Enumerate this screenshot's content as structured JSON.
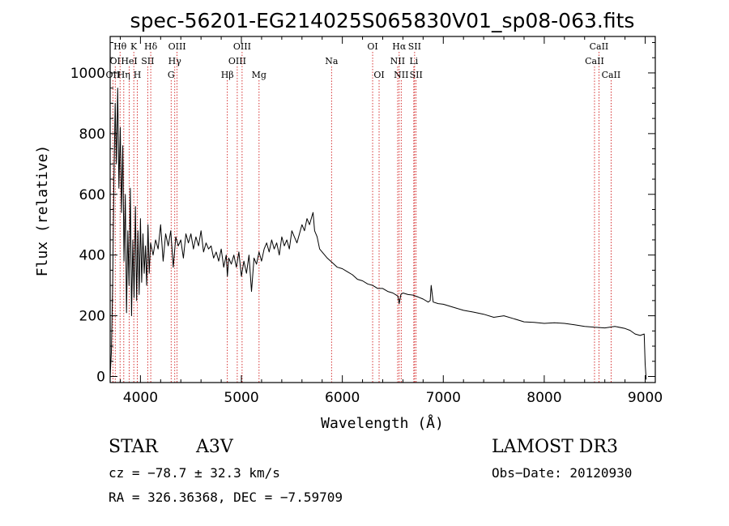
{
  "chart_data": {
    "type": "line",
    "title": "spec-56201-EG214025S065830V01_sp08-063.fits",
    "xlabel": "Wavelength (Å)",
    "ylabel": "Flux (relative)",
    "xlim": [
      3700,
      9100
    ],
    "ylim": [
      -20,
      1120
    ],
    "xticks": [
      4000,
      5000,
      6000,
      7000,
      8000,
      9000
    ],
    "yticks": [
      0,
      200,
      400,
      600,
      800,
      1000
    ],
    "series": [
      {
        "name": "flux",
        "x": [
          3700,
          3712,
          3725,
          3737,
          3750,
          3762,
          3775,
          3787,
          3800,
          3812,
          3825,
          3837,
          3850,
          3862,
          3875,
          3887,
          3900,
          3912,
          3925,
          3937,
          3950,
          3962,
          3975,
          3987,
          4000,
          4012,
          4025,
          4037,
          4050,
          4062,
          4075,
          4087,
          4100,
          4125,
          4150,
          4175,
          4200,
          4225,
          4250,
          4275,
          4300,
          4325,
          4350,
          4375,
          4400,
          4425,
          4450,
          4475,
          4500,
          4525,
          4550,
          4575,
          4600,
          4625,
          4650,
          4675,
          4700,
          4725,
          4750,
          4775,
          4800,
          4825,
          4850,
          4861,
          4875,
          4900,
          4925,
          4950,
          4975,
          5000,
          5025,
          5050,
          5075,
          5100,
          5125,
          5150,
          5175,
          5200,
          5225,
          5250,
          5275,
          5300,
          5325,
          5350,
          5375,
          5400,
          5425,
          5450,
          5475,
          5500,
          5525,
          5550,
          5575,
          5600,
          5625,
          5650,
          5675,
          5700,
          5710,
          5725,
          5750,
          5775,
          5800,
          5850,
          5900,
          5950,
          6000,
          6050,
          6100,
          6150,
          6200,
          6250,
          6300,
          6350,
          6400,
          6450,
          6500,
          6550,
          6563,
          6580,
          6600,
          6650,
          6700,
          6750,
          6800,
          6850,
          6870,
          6880,
          6900,
          6950,
          7000,
          7100,
          7200,
          7300,
          7400,
          7500,
          7600,
          7700,
          7800,
          7900,
          8000,
          8100,
          8200,
          8300,
          8400,
          8500,
          8600,
          8700,
          8800,
          8850,
          8900,
          8950,
          8990,
          9000,
          9010
        ],
        "values": [
          0,
          80,
          300,
          640,
          900,
          700,
          950,
          620,
          820,
          540,
          760,
          380,
          600,
          210,
          480,
          300,
          620,
          200,
          450,
          260,
          560,
          250,
          480,
          270,
          520,
          310,
          470,
          340,
          430,
          300,
          500,
          340,
          440,
          400,
          450,
          420,
          500,
          380,
          470,
          430,
          480,
          360,
          460,
          430,
          450,
          390,
          470,
          440,
          470,
          420,
          460,
          430,
          480,
          410,
          440,
          420,
          430,
          390,
          410,
          380,
          420,
          360,
          400,
          330,
          390,
          370,
          400,
          360,
          410,
          330,
          380,
          340,
          400,
          280,
          390,
          370,
          410,
          380,
          420,
          440,
          410,
          450,
          420,
          440,
          400,
          460,
          430,
          450,
          420,
          480,
          460,
          440,
          470,
          500,
          480,
          520,
          500,
          530,
          540,
          480,
          460,
          420,
          410,
          390,
          375,
          360,
          355,
          345,
          335,
          320,
          315,
          305,
          300,
          290,
          290,
          280,
          275,
          265,
          240,
          270,
          275,
          270,
          268,
          262,
          255,
          245,
          250,
          300,
          245,
          240,
          238,
          228,
          218,
          212,
          205,
          195,
          200,
          190,
          180,
          178,
          175,
          177,
          175,
          170,
          165,
          162,
          160,
          165,
          158,
          152,
          140,
          135,
          140,
          40,
          -10
        ]
      }
    ],
    "lines": [
      {
        "wavelength": 3727,
        "label": "OII",
        "row": 2
      },
      {
        "wavelength": 3750,
        "label": "OI",
        "row": 1
      },
      {
        "wavelength": 3798,
        "label": "Hθ",
        "row": 0
      },
      {
        "wavelength": 3835,
        "label": "Hη",
        "row": 2
      },
      {
        "wavelength": 3889,
        "label": "HeI",
        "row": 1
      },
      {
        "wavelength": 3934,
        "label": "K",
        "row": 0
      },
      {
        "wavelength": 3969,
        "label": "H",
        "row": 2
      },
      {
        "wavelength": 4072,
        "label": "SII",
        "row": 1
      },
      {
        "wavelength": 4102,
        "label": "Hδ",
        "row": 0
      },
      {
        "wavelength": 4304,
        "label": "G",
        "row": 2
      },
      {
        "wavelength": 4340,
        "label": "Hγ",
        "row": 1
      },
      {
        "wavelength": 4363,
        "label": "OIII",
        "row": 0
      },
      {
        "wavelength": 4861,
        "label": "Hβ",
        "row": 2
      },
      {
        "wavelength": 4959,
        "label": "OIII",
        "row": 1
      },
      {
        "wavelength": 5007,
        "label": "OIII",
        "row": 0
      },
      {
        "wavelength": 5175,
        "label": "Mg",
        "row": 2
      },
      {
        "wavelength": 5893,
        "label": "Na",
        "row": 1
      },
      {
        "wavelength": 6300,
        "label": "OI",
        "row": 0
      },
      {
        "wavelength": 6364,
        "label": "OI",
        "row": 2
      },
      {
        "wavelength": 6548,
        "label": "NII",
        "row": 1
      },
      {
        "wavelength": 6563,
        "label": "Hα",
        "row": 0
      },
      {
        "wavelength": 6583,
        "label": "NII",
        "row": 2
      },
      {
        "wavelength": 6708,
        "label": "Li",
        "row": 1
      },
      {
        "wavelength": 6716,
        "label": "SII",
        "row": 0
      },
      {
        "wavelength": 6731,
        "label": "SII",
        "row": 2
      },
      {
        "wavelength": 8498,
        "label": "CaII",
        "row": 1
      },
      {
        "wavelength": 8542,
        "label": "CaII",
        "row": 0
      },
      {
        "wavelength": 8662,
        "label": "CaII",
        "row": 2
      }
    ]
  },
  "info": {
    "object_class": "STAR",
    "subclass": "A3V",
    "survey": "LAMOST DR3",
    "redshift_text": "cz = −78.7 ± 32.3 km/s",
    "obs_date": "Obs−Date: 20120930",
    "coords": "RA = 326.36368, DEC =  −7.59709"
  },
  "colors": {
    "spectrum": "#000000",
    "line_marker": "#cc0000",
    "axes": "#000000"
  }
}
